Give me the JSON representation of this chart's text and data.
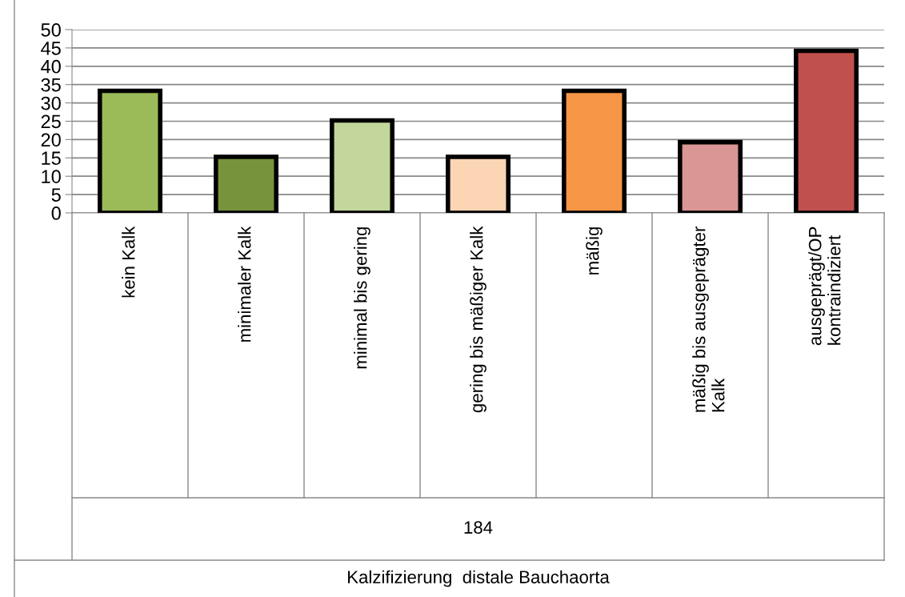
{
  "chart_data": {
    "type": "bar",
    "categories": [
      "kein Kalk",
      "minimaler Kalk",
      "minimal bis gering",
      "gering bis mäßiger Kalk",
      "mäßig",
      "mäßig bis ausgeprägter\nKalk",
      "ausgeprägt/OP\nkontraindiziert"
    ],
    "values": [
      33.3,
      15.3,
      25.2,
      15.3,
      33.3,
      19.3,
      44.2
    ],
    "colors": [
      "#9bbb59",
      "#77933c",
      "#c3d69b",
      "#fcd5b5",
      "#f79646",
      "#d99694",
      "#c0504d"
    ],
    "annotations": [
      "184",
      "Kalzifizierung  distale Bauchaorta"
    ],
    "ylim": [
      0,
      50
    ],
    "yticks": [
      0,
      5,
      10,
      15,
      20,
      25,
      30,
      35,
      40,
      45,
      50
    ],
    "grid": "y",
    "legend": false
  }
}
